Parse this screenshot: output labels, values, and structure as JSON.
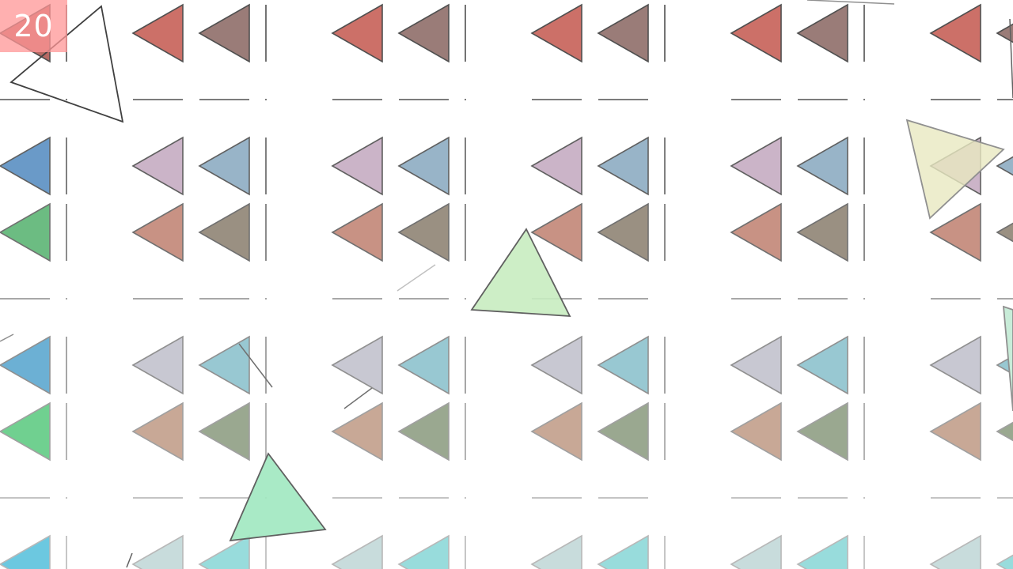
{
  "hud": {
    "score": "20",
    "score_color": "#ff9696"
  },
  "grid": {
    "rows": [
      {
        "kind": "triangle-pair",
        "colors": [
          "#cc7068",
          "#9a7c78"
        ],
        "first_column_colors": [
          "#b76a64",
          "#9a7c78"
        ]
      },
      {
        "kind": "triangle-pair",
        "colors": [
          "#cbb4c8",
          "#98b4c8"
        ],
        "first_column_colors": [
          "#6a9ac8",
          "#98b4c8"
        ]
      },
      {
        "kind": "triangle-pair",
        "colors": [
          "#c89284",
          "#9a9082"
        ],
        "first_column_colors": [
          "#6cbc82",
          "#9a9082"
        ]
      },
      {
        "kind": "triangle-pair",
        "colors": [
          "#c8c8d2",
          "#98c8d2"
        ],
        "first_column_colors": [
          "#6cb0d4",
          "#98c8d2"
        ]
      },
      {
        "kind": "triangle-pair",
        "colors": [
          "#c8a896",
          "#9aa890"
        ],
        "first_column_colors": [
          "#70d090",
          "#9aa890"
        ]
      },
      {
        "kind": "triangle-pair",
        "colors": [
          "#c8dcdc",
          "#98dcdc"
        ],
        "first_column_colors": [
          "#6cc8e0",
          "#98dcdc"
        ]
      }
    ]
  },
  "floating_shapes": [
    {
      "name": "hollow-triangle-shard",
      "fill": "none"
    },
    {
      "name": "yellow-triangle-shard",
      "fill": "#e8e8c0"
    },
    {
      "name": "green-triangle-shard",
      "fill": "#c8ecc0"
    },
    {
      "name": "mint-triangle-shard",
      "fill": "#a0e8c0"
    },
    {
      "name": "mint-edge-shard",
      "fill": "#c8ecd8"
    }
  ]
}
